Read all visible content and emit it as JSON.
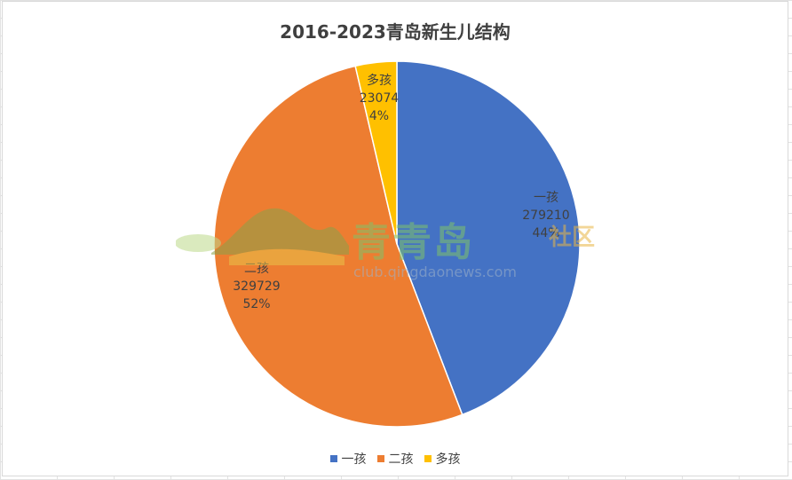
{
  "chart_data": {
    "type": "pie",
    "title": "2016-2023青岛新生儿结构",
    "categories": [
      "一孩",
      "二孩",
      "多孩"
    ],
    "values": [
      279210,
      329729,
      23074
    ],
    "percents": [
      "44%",
      "52%",
      "4%"
    ],
    "colors": [
      "#4472C4",
      "#ED7D31",
      "#FFC000"
    ],
    "legend_position": "bottom"
  },
  "watermark": {
    "brand": "青青岛",
    "sub": "社区",
    "url": "club.qingdaonews.com"
  }
}
